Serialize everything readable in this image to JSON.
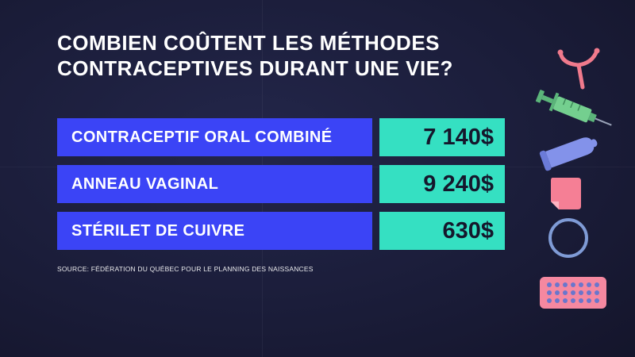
{
  "title": "COMBIEN COÛTENT LES MÉTHODES CONTRACEPTIVES DURANT UNE VIE?",
  "rows": [
    {
      "label": "CONTRACEPTIF ORAL COMBINÉ",
      "value": "7 140$"
    },
    {
      "label": "ANNEAU VAGINAL",
      "value": "9 240$"
    },
    {
      "label": "STÉRILET DE CUIVRE",
      "value": "630$"
    }
  ],
  "source": "SOURCE: FÉDÉRATION DU QUÉBEC POUR LE PLANNING DES NAISSANCES",
  "colors": {
    "background": "#1a1c38",
    "label_bg": "#3b44f6",
    "value_bg": "#35e0c2",
    "iud": "#f07a8c",
    "syringe": "#6fc98a",
    "condom": "#7e8ee6",
    "patch": "#f57f95",
    "ring": "#7f9bd6",
    "pill_pack": "#f588a0"
  },
  "icons": [
    "iud-icon",
    "syringe-icon",
    "condom-icon",
    "patch-icon",
    "vaginal-ring-icon",
    "pill-pack-icon"
  ]
}
